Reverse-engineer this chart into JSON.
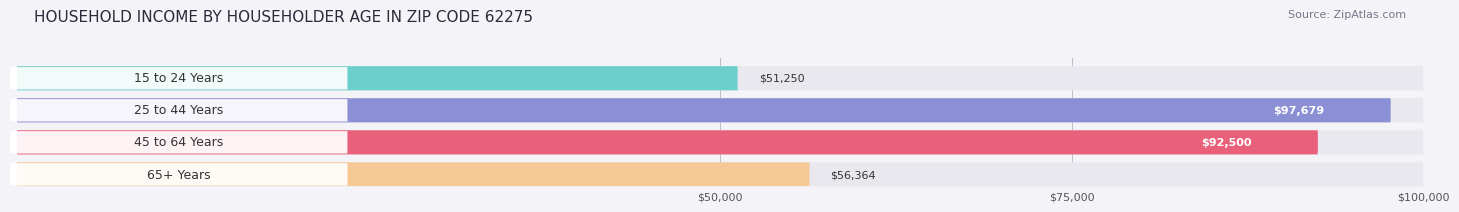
{
  "title": "HOUSEHOLD INCOME BY HOUSEHOLDER AGE IN ZIP CODE 62275",
  "source": "Source: ZipAtlas.com",
  "categories": [
    "15 to 24 Years",
    "25 to 44 Years",
    "45 to 64 Years",
    "65+ Years"
  ],
  "values": [
    51250,
    97679,
    92500,
    56364
  ],
  "bar_colors": [
    "#6dcfcc",
    "#8b8fd4",
    "#e8607a",
    "#f5c896"
  ],
  "bg_color": "#f4f4f8",
  "bar_bg_color": "#e8e8ee",
  "xlim_min": 0,
  "xlim_max": 100000,
  "xticks": [
    50000,
    75000,
    100000
  ],
  "xtick_labels": [
    "$50,000",
    "$75,000",
    "$100,000"
  ],
  "label_color_dark": "#333333",
  "label_color_white": "#ffffff",
  "title_fontsize": 11,
  "source_fontsize": 8,
  "tick_fontsize": 8,
  "bar_label_fontsize": 8,
  "cat_label_fontsize": 9,
  "value_label_inside_threshold": 70000
}
